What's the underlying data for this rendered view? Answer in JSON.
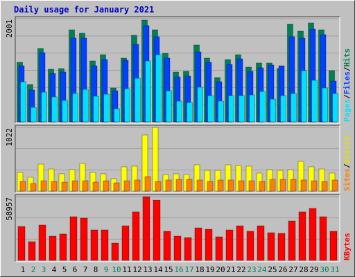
{
  "title": "Daily usage for January 2021",
  "chart_data": [
    {
      "type": "bar",
      "ylim": [
        0,
        2001
      ],
      "yticks": [
        2001
      ],
      "legend_separator": "/",
      "series": [
        {
          "name": "Hits",
          "color": "#00805a",
          "values": [
            1155,
            725,
            1424,
            1021,
            1034,
            1786,
            1719,
            1182,
            1303,
            658,
            1236,
            1679,
            1974,
            1786,
            1330,
            967,
            980,
            1491,
            1236,
            860,
            1209,
            1303,
            1061,
            1142,
            1142,
            1034,
            1894,
            1759,
            1920,
            1786,
            994
          ]
        },
        {
          "name": "Files",
          "color": "#0040ff",
          "values": [
            1088,
            618,
            1343,
            940,
            967,
            1625,
            1625,
            1088,
            1209,
            604,
            1195,
            1504,
            1867,
            1652,
            1236,
            873,
            886,
            1356,
            1155,
            779,
            1115,
            1222,
            980,
            1048,
            1101,
            1088,
            1652,
            1625,
            1800,
            1692,
            792
          ]
        },
        {
          "name": "Pages",
          "color": "#00e0ff",
          "values": [
            779,
            282,
            577,
            484,
            416,
            551,
            631,
            497,
            537,
            255,
            645,
            846,
            1182,
            1303,
            604,
            403,
            376,
            672,
            510,
            403,
            510,
            510,
            524,
            591,
            443,
            510,
            551,
            994,
            806,
            658,
            551
          ]
        }
      ]
    },
    {
      "type": "bar",
      "ylim": [
        0,
        1022
      ],
      "yticks": [
        1022
      ],
      "legend_separator": "/",
      "series": [
        {
          "name": "Visits",
          "color": "#ffff00",
          "values": [
            300,
            222,
            433,
            355,
            278,
            344,
            444,
            300,
            278,
            200,
            389,
            400,
            900,
            1022,
            266,
            278,
            266,
            422,
            333,
            333,
            422,
            411,
            400,
            289,
            344,
            333,
            344,
            477,
            389,
            355,
            289
          ]
        },
        {
          "name": "Sites",
          "color": "#ff8000",
          "values": [
            155,
            122,
            166,
            155,
            144,
            166,
            166,
            144,
            166,
            133,
            166,
            178,
            233,
            155,
            178,
            189,
            189,
            178,
            155,
            178,
            178,
            166,
            166,
            155,
            189,
            189,
            189,
            178,
            166,
            155,
            178
          ]
        }
      ]
    },
    {
      "type": "bar",
      "ylim": [
        0,
        58957
      ],
      "yticks": [
        58957
      ],
      "categories": [
        "1",
        "2",
        "3",
        "4",
        "5",
        "6",
        "7",
        "8",
        "9",
        "10",
        "11",
        "12",
        "13",
        "14",
        "15",
        "16",
        "17",
        "18",
        "19",
        "20",
        "21",
        "22",
        "23",
        "24",
        "25",
        "26",
        "27",
        "28",
        "29",
        "30",
        "31"
      ],
      "category_colors": [
        "#000000",
        "#00805a",
        "#00805a",
        "#000000",
        "#000000",
        "#000000",
        "#000000",
        "#000000",
        "#00805a",
        "#00805a",
        "#000000",
        "#000000",
        "#000000",
        "#000000",
        "#000000",
        "#00805a",
        "#00805a",
        "#000000",
        "#000000",
        "#000000",
        "#000000",
        "#000000",
        "#00805a",
        "#00805a",
        "#000000",
        "#000000",
        "#000000",
        "#000000",
        "#000000",
        "#00805a",
        "#00805a"
      ],
      "series": [
        {
          "name": "KBytes",
          "color": "#ff0000",
          "values": [
            31400,
            17300,
            32700,
            22400,
            24400,
            40400,
            39100,
            28200,
            28200,
            16000,
            32000,
            44900,
            58957,
            55700,
            26900,
            22400,
            21100,
            30100,
            28800,
            21800,
            28200,
            32000,
            26900,
            32000,
            25600,
            25000,
            36500,
            44900,
            48100,
            40400,
            26900
          ]
        }
      ]
    }
  ]
}
